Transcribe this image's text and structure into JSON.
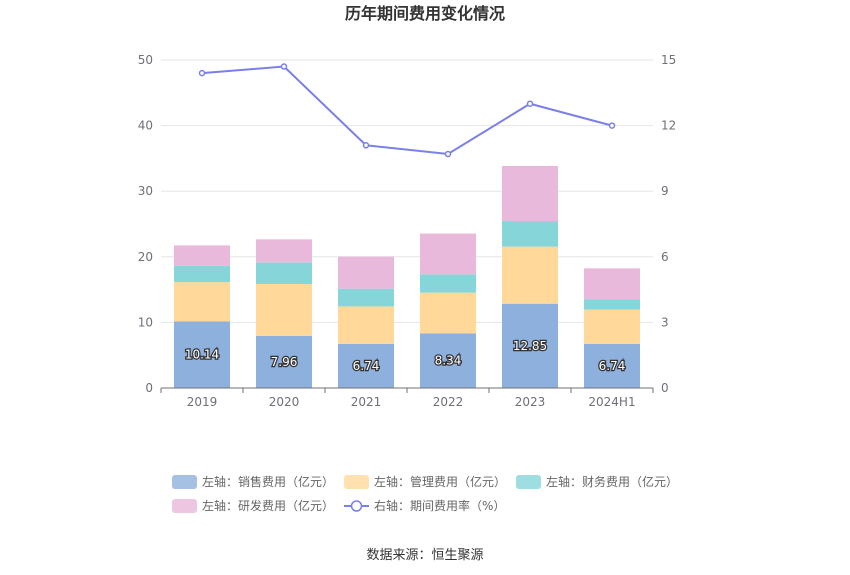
{
  "chart_data": {
    "type": "bar",
    "title": "历年期间费用变化情况",
    "categories": [
      "2019",
      "2020",
      "2021",
      "2022",
      "2023",
      "2024H1"
    ],
    "series": [
      {
        "name": "左轴：销售费用（亿元）",
        "axis": "left",
        "color": "#8eb0dc",
        "values": [
          10.14,
          7.96,
          6.74,
          8.34,
          12.85,
          6.74
        ]
      },
      {
        "name": "左轴：管理费用（亿元）",
        "axis": "left",
        "color": "#ffd89a",
        "values": [
          6.0,
          7.9,
          5.7,
          6.2,
          8.7,
          5.2
        ]
      },
      {
        "name": "左轴：财务费用（亿元）",
        "axis": "left",
        "color": "#86d5d9",
        "values": [
          2.5,
          3.3,
          2.7,
          2.8,
          3.9,
          1.6
        ]
      },
      {
        "name": "左轴：研发费用（亿元）",
        "axis": "left",
        "color": "#e8b9da",
        "values": [
          3.1,
          3.5,
          4.9,
          6.2,
          8.4,
          4.7
        ]
      },
      {
        "name": "右轴：期间费用率（%）",
        "axis": "right",
        "type": "line",
        "color": "#7b7fe8",
        "values": [
          14.4,
          14.7,
          11.1,
          10.7,
          13.0,
          12.0
        ]
      }
    ],
    "data_labels_series": "左轴：销售费用（亿元）",
    "data_labels": [
      "10.14",
      "7.96",
      "6.74",
      "8.34",
      "12.85",
      "6.74"
    ],
    "left_axis": {
      "min": 0,
      "max": 50,
      "ticks": [
        "0",
        "10",
        "20",
        "30",
        "40",
        "50"
      ]
    },
    "right_axis": {
      "min": 0,
      "max": 15,
      "ticks": [
        "0",
        "3",
        "6",
        "9",
        "12",
        "15"
      ]
    },
    "grid": true,
    "legend_position": "bottom",
    "source": "数据来源：恒生聚源"
  }
}
